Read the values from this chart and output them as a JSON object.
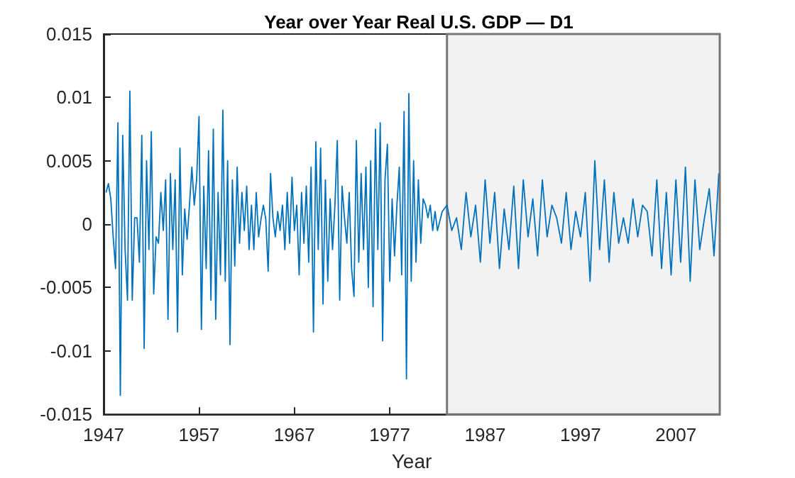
{
  "chart_data": {
    "type": "line",
    "title": "Year over Year Real U.S. GDP — D1",
    "xlabel": "Year",
    "xlim": [
      1947,
      2011.6
    ],
    "xticks": [
      1947,
      1957,
      1967,
      1977,
      1987,
      1997,
      2007
    ],
    "ylim": [
      -0.015,
      0.015
    ],
    "yticks": [
      -0.015,
      -0.01,
      -0.005,
      0,
      0.005,
      0.01,
      0.015
    ],
    "grid": false,
    "marker": "none",
    "line_style": "solid",
    "bands": [
      {
        "axis": "x",
        "from": 1983,
        "to": 2011.6,
        "color": "#f2f2f2"
      }
    ],
    "series": [
      {
        "color": "#0072bd",
        "x": [
          1947.25,
          1947.5,
          1947.75,
          1948,
          1948.25,
          1948.5,
          1948.75,
          1949,
          1949.25,
          1949.5,
          1949.75,
          1950,
          1950.25,
          1950.5,
          1950.75,
          1951,
          1951.25,
          1951.5,
          1951.75,
          1952,
          1952.25,
          1952.5,
          1952.75,
          1953,
          1953.25,
          1953.5,
          1953.75,
          1954,
          1954.25,
          1954.5,
          1954.75,
          1955,
          1955.25,
          1955.5,
          1955.75,
          1956,
          1956.25,
          1956.5,
          1956.75,
          1957,
          1957.25,
          1957.5,
          1957.75,
          1958,
          1958.25,
          1958.5,
          1958.75,
          1959,
          1959.25,
          1959.5,
          1959.75,
          1960,
          1960.25,
          1960.5,
          1960.75,
          1961,
          1961.25,
          1961.5,
          1961.75,
          1962,
          1962.25,
          1962.5,
          1962.75,
          1963,
          1963.25,
          1963.5,
          1963.75,
          1964,
          1964.25,
          1964.5,
          1964.75,
          1965,
          1965.25,
          1965.5,
          1965.75,
          1966,
          1966.25,
          1966.5,
          1966.75,
          1967,
          1967.25,
          1967.5,
          1967.75,
          1968,
          1968.25,
          1968.5,
          1968.75,
          1969,
          1969.25,
          1969.5,
          1969.75,
          1970,
          1970.25,
          1970.5,
          1970.75,
          1971,
          1971.25,
          1971.5,
          1971.75,
          1972,
          1972.25,
          1972.5,
          1972.75,
          1973,
          1973.25,
          1973.5,
          1973.75,
          1974,
          1974.25,
          1974.5,
          1974.75,
          1975,
          1975.25,
          1975.5,
          1975.75,
          1976,
          1976.25,
          1976.5,
          1976.75,
          1977,
          1977.25,
          1977.5,
          1977.75,
          1978,
          1978.25,
          1978.5,
          1978.75,
          1979,
          1979.25,
          1979.5,
          1979.75,
          1980,
          1980.25,
          1980.5,
          1980.75,
          1981,
          1981.25,
          1981.5,
          1981.75,
          1982,
          1982.5,
          1983,
          1983.5,
          1984,
          1984.5,
          1985,
          1985.5,
          1986,
          1986.5,
          1987,
          1987.5,
          1988,
          1988.5,
          1989,
          1989.5,
          1990,
          1990.5,
          1991,
          1991.5,
          1992,
          1992.5,
          1993,
          1993.5,
          1994,
          1994.5,
          1995,
          1995.5,
          1996,
          1996.5,
          1997,
          1997.5,
          1998,
          1998.5,
          1999,
          1999.5,
          2000,
          2000.5,
          2001,
          2001.5,
          2002,
          2002.5,
          2003,
          2003.5,
          2004,
          2004.5,
          2005,
          2005.5,
          2006,
          2006.5,
          2007,
          2007.5,
          2008,
          2008.5,
          2009,
          2009.5,
          2010,
          2010.5,
          2011,
          2011.5
        ],
        "values": [
          0.0025,
          0.0032,
          0.002,
          -0.001,
          -0.0035,
          0.008,
          -0.0135,
          0.007,
          -0.002,
          -0.006,
          0.0105,
          -0.006,
          0.0005,
          0.0005,
          -0.003,
          0.007,
          -0.0098,
          0.005,
          -0.002,
          0.0073,
          -0.0055,
          -0.001,
          -0.0015,
          0.0025,
          -0.0005,
          0.0035,
          -0.0075,
          0.004,
          -0.002,
          0.0035,
          -0.0085,
          0.006,
          -0.004,
          0.0012,
          -0.0012,
          0.0015,
          0.0045,
          0.0015,
          0.0035,
          0.0085,
          -0.0083,
          0.003,
          -0.0035,
          0.0058,
          -0.006,
          0.0075,
          -0.0075,
          0.0025,
          -0.004,
          0.009,
          -0.0045,
          0.005,
          -0.0095,
          0.0035,
          -0.0033,
          0.0045,
          -0.0015,
          0.0025,
          -0.0005,
          0.003,
          -0.002,
          0.0015,
          -0.002,
          0.0025,
          -0.001,
          0.0004,
          0.0015,
          0.0004,
          -0.0037,
          0.004,
          0.0005,
          -0.001,
          0.001,
          -0.0005,
          0.0015,
          -0.002,
          0.0025,
          -0.0015,
          0.0037,
          -0.0005,
          0.0015,
          -0.004,
          0.0025,
          -0.0015,
          0.003,
          -0.003,
          0.0045,
          -0.0085,
          0.0065,
          -0.002,
          0.006,
          -0.0063,
          0.0035,
          -0.0045,
          0.002,
          -0.002,
          0.0015,
          0.0066,
          -0.006,
          0.003,
          0.0005,
          -0.0015,
          0.0025,
          -0.0035,
          -0.0057,
          0.0066,
          -0.003,
          0.004,
          -0.002,
          0.0045,
          -0.005,
          0.005,
          -0.0065,
          0.0075,
          -0.002,
          0.008,
          -0.0092,
          0.0035,
          0.0063,
          -0.0045,
          0.002,
          -0.0025,
          0.0015,
          0.0045,
          -0.004,
          0.0089,
          -0.0122,
          0.0103,
          -0.0045,
          0.005,
          -0.003,
          0.0035,
          -0.0015,
          0.002,
          0.0015,
          0.0005,
          0.0015,
          -0.0005,
          0.001,
          -0.0005,
          0.001,
          0.0015,
          -0.0005,
          0.0005,
          -0.002,
          0.0025,
          -0.001,
          0.0015,
          -0.003,
          0.0035,
          -0.0015,
          0.0025,
          -0.0035,
          0.0012,
          -0.002,
          0.003,
          -0.0035,
          0.0035,
          -0.001,
          0.002,
          -0.0025,
          0.0035,
          -0.001,
          0.0015,
          0.0005,
          -0.0015,
          0.0025,
          -0.002,
          0.001,
          -0.001,
          0.0025,
          -0.0045,
          0.005,
          -0.002,
          0.0035,
          -0.003,
          0.0025,
          -0.0015,
          0.0005,
          -0.0015,
          0.002,
          -0.001,
          0.0015,
          0.001,
          -0.0025,
          0.0035,
          -0.0035,
          0.0025,
          -0.004,
          0.0035,
          -0.003,
          0.0045,
          -0.0045,
          0.0035,
          -0.002,
          0.0005,
          0.0028,
          -0.0025,
          0.004
        ]
      }
    ]
  }
}
